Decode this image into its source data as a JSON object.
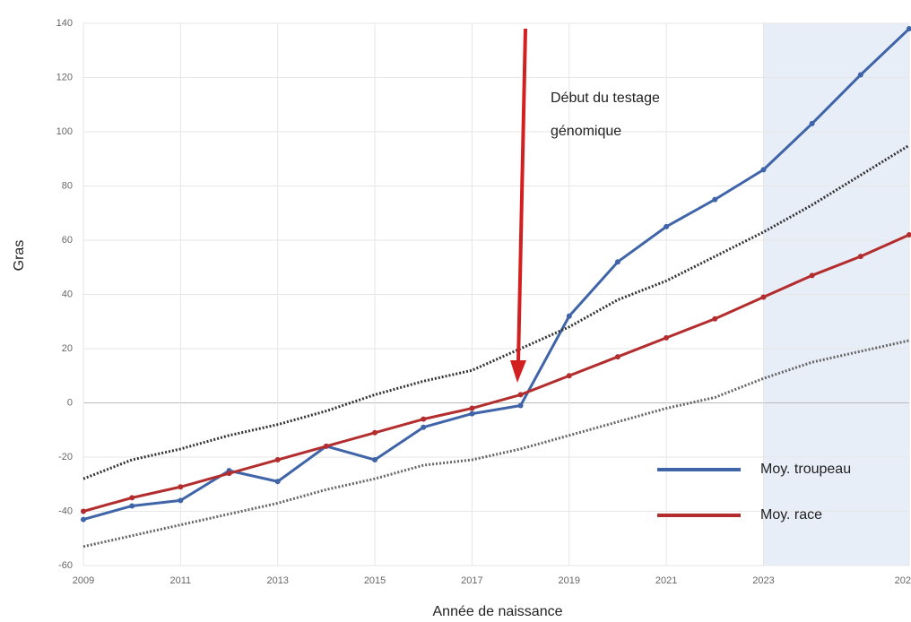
{
  "chart_data": {
    "type": "line",
    "ylabel": "Gras",
    "xlabel": "Année de naissance",
    "annotation": [
      "Début du testage",
      "génomique"
    ],
    "x": [
      2009,
      2010,
      2011,
      2012,
      2013,
      2014,
      2015,
      2016,
      2017,
      2018,
      2019,
      2020,
      2021,
      2022,
      2023,
      2024,
      2025,
      2026
    ],
    "series": [
      {
        "name": "Moy. troupeau",
        "color": "#3f64a8",
        "style": "solid",
        "markers": true,
        "values": [
          -43,
          -38,
          -36,
          -25,
          -29,
          -16,
          -21,
          -9,
          -4,
          -1,
          32,
          52,
          65,
          75,
          86,
          103,
          121,
          138
        ]
      },
      {
        "name": "Moy. race",
        "color": "#b32d2e",
        "style": "solid",
        "markers": true,
        "values": [
          -40,
          -35,
          -31,
          -26,
          -21,
          -16,
          -11,
          -6,
          -2,
          3,
          10,
          17,
          24,
          31,
          39,
          47,
          54,
          62
        ]
      },
      {
        "color": "#333333",
        "style": "dotted",
        "markers": false,
        "values": [
          -28,
          -21,
          -17,
          -12,
          -8,
          -3,
          3,
          8,
          12,
          20,
          28,
          38,
          45,
          54,
          63,
          73,
          84,
          95
        ]
      },
      {
        "color": "#666666",
        "style": "dotted",
        "markers": false,
        "values": [
          -53,
          -49,
          -45,
          -41,
          -37,
          -32,
          -28,
          -23,
          -21,
          -17,
          -12,
          -7,
          -2,
          2,
          9,
          15,
          19,
          23
        ]
      }
    ],
    "xlim": [
      2009,
      2026
    ],
    "xticks": [
      2009,
      2011,
      2013,
      2015,
      2017,
      2019,
      2021,
      2023,
      {
        "value": 2026,
        "label": "202"
      }
    ],
    "ylim": [
      -60,
      140
    ],
    "yticks": [
      -60,
      -40,
      -20,
      0,
      20,
      40,
      60,
      80,
      100,
      120,
      140
    ],
    "shade_xlim": [
      2023,
      2026
    ],
    "shade_color": "#e8eef8",
    "grid": true
  }
}
